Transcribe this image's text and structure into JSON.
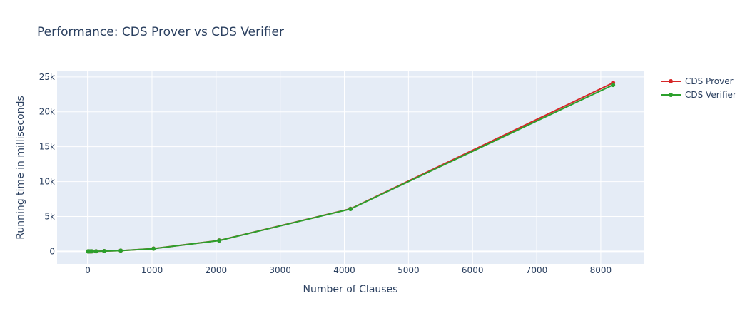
{
  "chart_data": {
    "type": "line",
    "title": "Performance: CDS Prover vs CDS Verifier",
    "xlabel": "Number of Clauses",
    "ylabel": "Running time in milliseconds",
    "xlim": [
      -480,
      8680
    ],
    "ylim": [
      -1800,
      25800
    ],
    "x_ticks": [
      0,
      1000,
      2000,
      3000,
      4000,
      5000,
      6000,
      7000,
      8000
    ],
    "x_tick_labels": [
      "0",
      "1000",
      "2000",
      "3000",
      "4000",
      "5000",
      "6000",
      "7000",
      "8000"
    ],
    "y_ticks": [
      0,
      5000,
      10000,
      15000,
      20000,
      25000
    ],
    "y_tick_labels": [
      "0",
      "5k",
      "10k",
      "15k",
      "20k",
      "25k"
    ],
    "grid": true,
    "legend_position": "top-right",
    "plot_background": "#e5ecf6",
    "series": [
      {
        "name": "CDS Prover",
        "color": "#d62728",
        "x": [
          2,
          4,
          8,
          16,
          32,
          64,
          128,
          256,
          512,
          1024,
          2048,
          4096,
          8192
        ],
        "y": [
          0,
          0,
          1,
          2,
          4,
          8,
          17,
          40,
          110,
          400,
          1560,
          6100,
          24150
        ]
      },
      {
        "name": "CDS Verifier",
        "color": "#2ca02c",
        "x": [
          2,
          4,
          8,
          16,
          32,
          64,
          128,
          256,
          512,
          1024,
          2048,
          4096,
          8192
        ],
        "y": [
          0,
          0,
          1,
          2,
          4,
          8,
          17,
          40,
          110,
          390,
          1550,
          6070,
          23850
        ]
      }
    ]
  }
}
